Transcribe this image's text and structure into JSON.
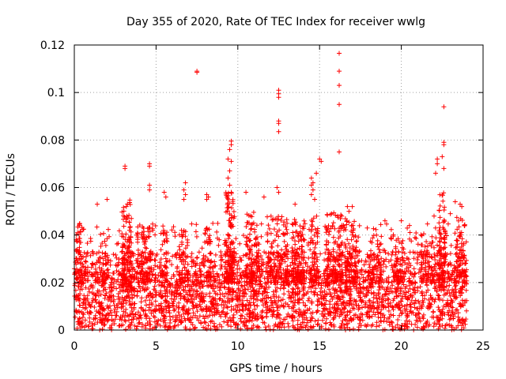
{
  "chart_data": {
    "type": "scatter",
    "title": "Day 355 of 2020, Rate Of TEC Index for receiver wwlg",
    "xlabel": "GPS time / hours",
    "ylabel": "ROTI / TECUs",
    "xlim": [
      0,
      25
    ],
    "ylim": [
      0,
      0.12
    ],
    "xticks": [
      0,
      5,
      10,
      15,
      20,
      25
    ],
    "xtick_labels": [
      "0",
      "5",
      "10",
      "15",
      "20",
      "25"
    ],
    "yticks": [
      0,
      0.02,
      0.04,
      0.06,
      0.08,
      0.1,
      0.12
    ],
    "ytick_labels": [
      "0",
      "0.02",
      "0.04",
      "0.06",
      "0.08",
      "0.1",
      "0.12"
    ],
    "grid": true,
    "marker": "+",
    "color": "#ff0000",
    "series": [
      {
        "name": "ROTI",
        "outliers": [
          [
            7.5,
            0.109
          ],
          [
            7.5,
            0.1085
          ],
          [
            12.5,
            0.101
          ],
          [
            12.5,
            0.0995
          ],
          [
            12.5,
            0.098
          ],
          [
            12.5,
            0.088
          ],
          [
            12.5,
            0.087
          ],
          [
            12.5,
            0.0835
          ],
          [
            16.2,
            0.1165
          ],
          [
            16.2,
            0.109
          ],
          [
            16.2,
            0.103
          ],
          [
            16.2,
            0.095
          ],
          [
            16.2,
            0.075
          ],
          [
            22.6,
            0.094
          ],
          [
            22.6,
            0.079
          ],
          [
            22.6,
            0.078
          ],
          [
            22.5,
            0.073
          ],
          [
            22.2,
            0.072
          ],
          [
            22.2,
            0.07
          ],
          [
            22.1,
            0.066
          ],
          [
            22.6,
            0.068
          ],
          [
            9.6,
            0.0795
          ],
          [
            9.6,
            0.078
          ],
          [
            9.5,
            0.076
          ],
          [
            9.4,
            0.072
          ],
          [
            9.6,
            0.071
          ],
          [
            9.5,
            0.067
          ],
          [
            9.4,
            0.064
          ],
          [
            9.5,
            0.061
          ],
          [
            9.6,
            0.058
          ],
          [
            3.1,
            0.069
          ],
          [
            3.1,
            0.068
          ],
          [
            4.6,
            0.07
          ],
          [
            4.6,
            0.069
          ],
          [
            4.6,
            0.061
          ],
          [
            4.6,
            0.059
          ],
          [
            5.5,
            0.058
          ],
          [
            5.6,
            0.056
          ],
          [
            6.8,
            0.062
          ],
          [
            6.7,
            0.059
          ],
          [
            6.8,
            0.057
          ],
          [
            6.7,
            0.055
          ],
          [
            8.1,
            0.057
          ],
          [
            8.2,
            0.056
          ],
          [
            8.1,
            0.055
          ],
          [
            14.5,
            0.064
          ],
          [
            14.6,
            0.062
          ],
          [
            14.5,
            0.061
          ],
          [
            14.6,
            0.059
          ],
          [
            14.5,
            0.057
          ],
          [
            14.7,
            0.055
          ],
          [
            14.8,
            0.066
          ],
          [
            15.0,
            0.072
          ],
          [
            15.1,
            0.071
          ],
          [
            12.4,
            0.06
          ],
          [
            12.5,
            0.058
          ],
          [
            10.5,
            0.058
          ],
          [
            11.6,
            0.056
          ],
          [
            13.5,
            0.053
          ],
          [
            23.6,
            0.053
          ],
          [
            23.7,
            0.052
          ],
          [
            23.3,
            0.054
          ],
          [
            1.4,
            0.053
          ],
          [
            2.0,
            0.055
          ],
          [
            0.3,
            0.044
          ],
          [
            0.2,
            0.041
          ],
          [
            16.7,
            0.052
          ],
          [
            16.8,
            0.05
          ],
          [
            17.0,
            0.052
          ],
          [
            19.0,
            0.046
          ],
          [
            20.0,
            0.046
          ],
          [
            20.5,
            0.044
          ],
          [
            23.0,
            0.049
          ],
          [
            22.0,
            0.048
          ]
        ],
        "bands": [
          {
            "x": [
              0,
              24
            ],
            "y": [
              0.0,
              0.025
            ],
            "count": 2600
          },
          {
            "x": [
              0,
              24
            ],
            "y": [
              0.025,
              0.033
            ],
            "count": 500
          },
          {
            "x": [
              0,
              24
            ],
            "y": [
              0.033,
              0.045
            ],
            "count": 160
          }
        ],
        "clusters": [
          {
            "x": [
              0.1,
              0.5
            ],
            "y": [
              0.02,
              0.045
            ],
            "count": 40
          },
          {
            "x": [
              1.6,
              2.1
            ],
            "y": [
              0.02,
              0.038
            ],
            "count": 35
          },
          {
            "x": [
              2.9,
              3.5
            ],
            "y": [
              0.018,
              0.055
            ],
            "count": 120
          },
          {
            "x": [
              3.8,
              4.7
            ],
            "y": [
              0.02,
              0.044
            ],
            "count": 80
          },
          {
            "x": [
              5.3,
              5.7
            ],
            "y": [
              0.02,
              0.042
            ],
            "count": 30
          },
          {
            "x": [
              6.4,
              7.0
            ],
            "y": [
              0.02,
              0.042
            ],
            "count": 45
          },
          {
            "x": [
              8.0,
              8.4
            ],
            "y": [
              0.022,
              0.045
            ],
            "count": 35
          },
          {
            "x": [
              9.2,
              9.8
            ],
            "y": [
              0.02,
              0.058
            ],
            "count": 160
          },
          {
            "x": [
              10.5,
              11.3
            ],
            "y": [
              0.02,
              0.05
            ],
            "count": 90
          },
          {
            "x": [
              11.8,
              13.1
            ],
            "y": [
              0.02,
              0.048
            ],
            "count": 140
          },
          {
            "x": [
              13.3,
              14.1
            ],
            "y": [
              0.02,
              0.047
            ],
            "count": 110
          },
          {
            "x": [
              14.4,
              14.9
            ],
            "y": [
              0.02,
              0.048
            ],
            "count": 60
          },
          {
            "x": [
              15.4,
              16.4
            ],
            "y": [
              0.02,
              0.05
            ],
            "count": 120
          },
          {
            "x": [
              16.5,
              17.3
            ],
            "y": [
              0.02,
              0.048
            ],
            "count": 90
          },
          {
            "x": [
              18.1,
              18.8
            ],
            "y": [
              0.02,
              0.04
            ],
            "count": 45
          },
          {
            "x": [
              19.5,
              20.1
            ],
            "y": [
              0.02,
              0.042
            ],
            "count": 40
          },
          {
            "x": [
              21.2,
              22.2
            ],
            "y": [
              0.02,
              0.04
            ],
            "count": 60
          },
          {
            "x": [
              22.3,
              22.7
            ],
            "y": [
              0.02,
              0.058
            ],
            "count": 80
          },
          {
            "x": [
              23.3,
              23.9
            ],
            "y": [
              0.02,
              0.048
            ],
            "count": 70
          }
        ]
      }
    ]
  }
}
